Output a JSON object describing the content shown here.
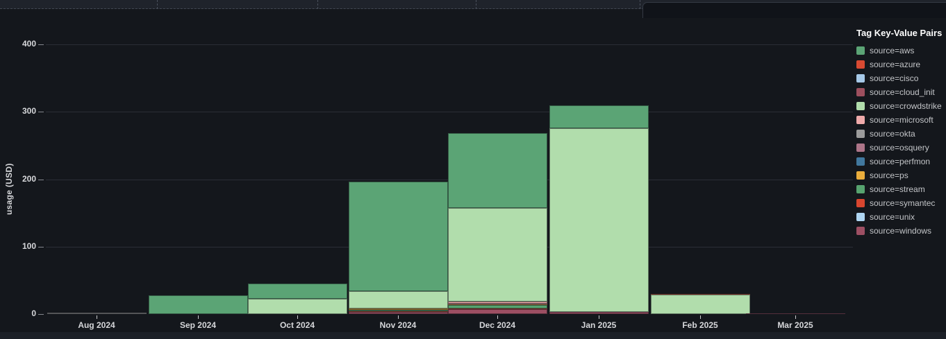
{
  "axes": {
    "y_title": "usage (USD)",
    "y_ticks": [
      0,
      100,
      200,
      300,
      400
    ]
  },
  "legend": {
    "title": "Tag Key-Value Pairs"
  },
  "chart_data": {
    "type": "bar",
    "stacked": true,
    "title": "",
    "xlabel": "",
    "ylabel": "usage (USD)",
    "ylim": [
      0,
      400
    ],
    "grid": true,
    "legend_position": "right",
    "legend_title": "Tag Key-Value Pairs",
    "categories": [
      "Aug 2024",
      "Sep 2024",
      "Oct 2024",
      "Nov 2024",
      "Dec 2024",
      "Jan 2025",
      "Feb 2025",
      "Mar 2025"
    ],
    "series": [
      {
        "name": "source=aws",
        "color": "#5ba475",
        "values": [
          0,
          28,
          22,
          162,
          111,
          34,
          0,
          0
        ]
      },
      {
        "name": "source=azure",
        "color": "#d84a32",
        "values": [
          0,
          0,
          0,
          0,
          0,
          0,
          1,
          0
        ]
      },
      {
        "name": "source=cisco",
        "color": "#a6c9e8",
        "values": [
          0,
          0,
          0,
          0,
          0,
          0,
          0,
          0
        ]
      },
      {
        "name": "source=cloud_init",
        "color": "#9d4f5e",
        "values": [
          0,
          0,
          0,
          0,
          0,
          0,
          0,
          0
        ]
      },
      {
        "name": "source=crowdstrike",
        "color": "#b1ddac",
        "values": [
          0,
          0,
          23,
          26,
          139,
          273,
          29,
          0
        ]
      },
      {
        "name": "source=microsoft",
        "color": "#eeaaaa",
        "values": [
          0,
          0,
          0,
          0,
          3,
          0,
          0,
          0
        ]
      },
      {
        "name": "source=okta",
        "color": "#9b9b9b",
        "values": [
          1.8,
          0,
          0,
          0,
          0,
          0,
          0,
          0
        ]
      },
      {
        "name": "source=osquery",
        "color": "#ad7588",
        "values": [
          0,
          0,
          0,
          0,
          1,
          0,
          0,
          0
        ]
      },
      {
        "name": "source=perfmon",
        "color": "#41789e",
        "values": [
          0,
          0,
          0,
          0,
          0,
          0,
          0,
          0
        ]
      },
      {
        "name": "source=ps",
        "color": "#e9ad3c",
        "values": [
          0,
          0,
          0,
          1.5,
          1,
          0,
          0,
          0
        ]
      },
      {
        "name": "source=stream",
        "color": "#57a36f",
        "values": [
          0,
          0,
          0,
          2,
          4.5,
          0,
          0,
          0
        ]
      },
      {
        "name": "source=symantec",
        "color": "#d8462f",
        "values": [
          0,
          0,
          0,
          1.5,
          1,
          0,
          0,
          0
        ]
      },
      {
        "name": "source=unix",
        "color": "#aed5f1",
        "values": [
          0,
          0,
          0,
          0,
          0,
          0,
          0,
          0
        ]
      },
      {
        "name": "source=windows",
        "color": "#9d4f63",
        "values": [
          0,
          0,
          0,
          3,
          7.5,
          3,
          0,
          1.5
        ]
      }
    ]
  }
}
